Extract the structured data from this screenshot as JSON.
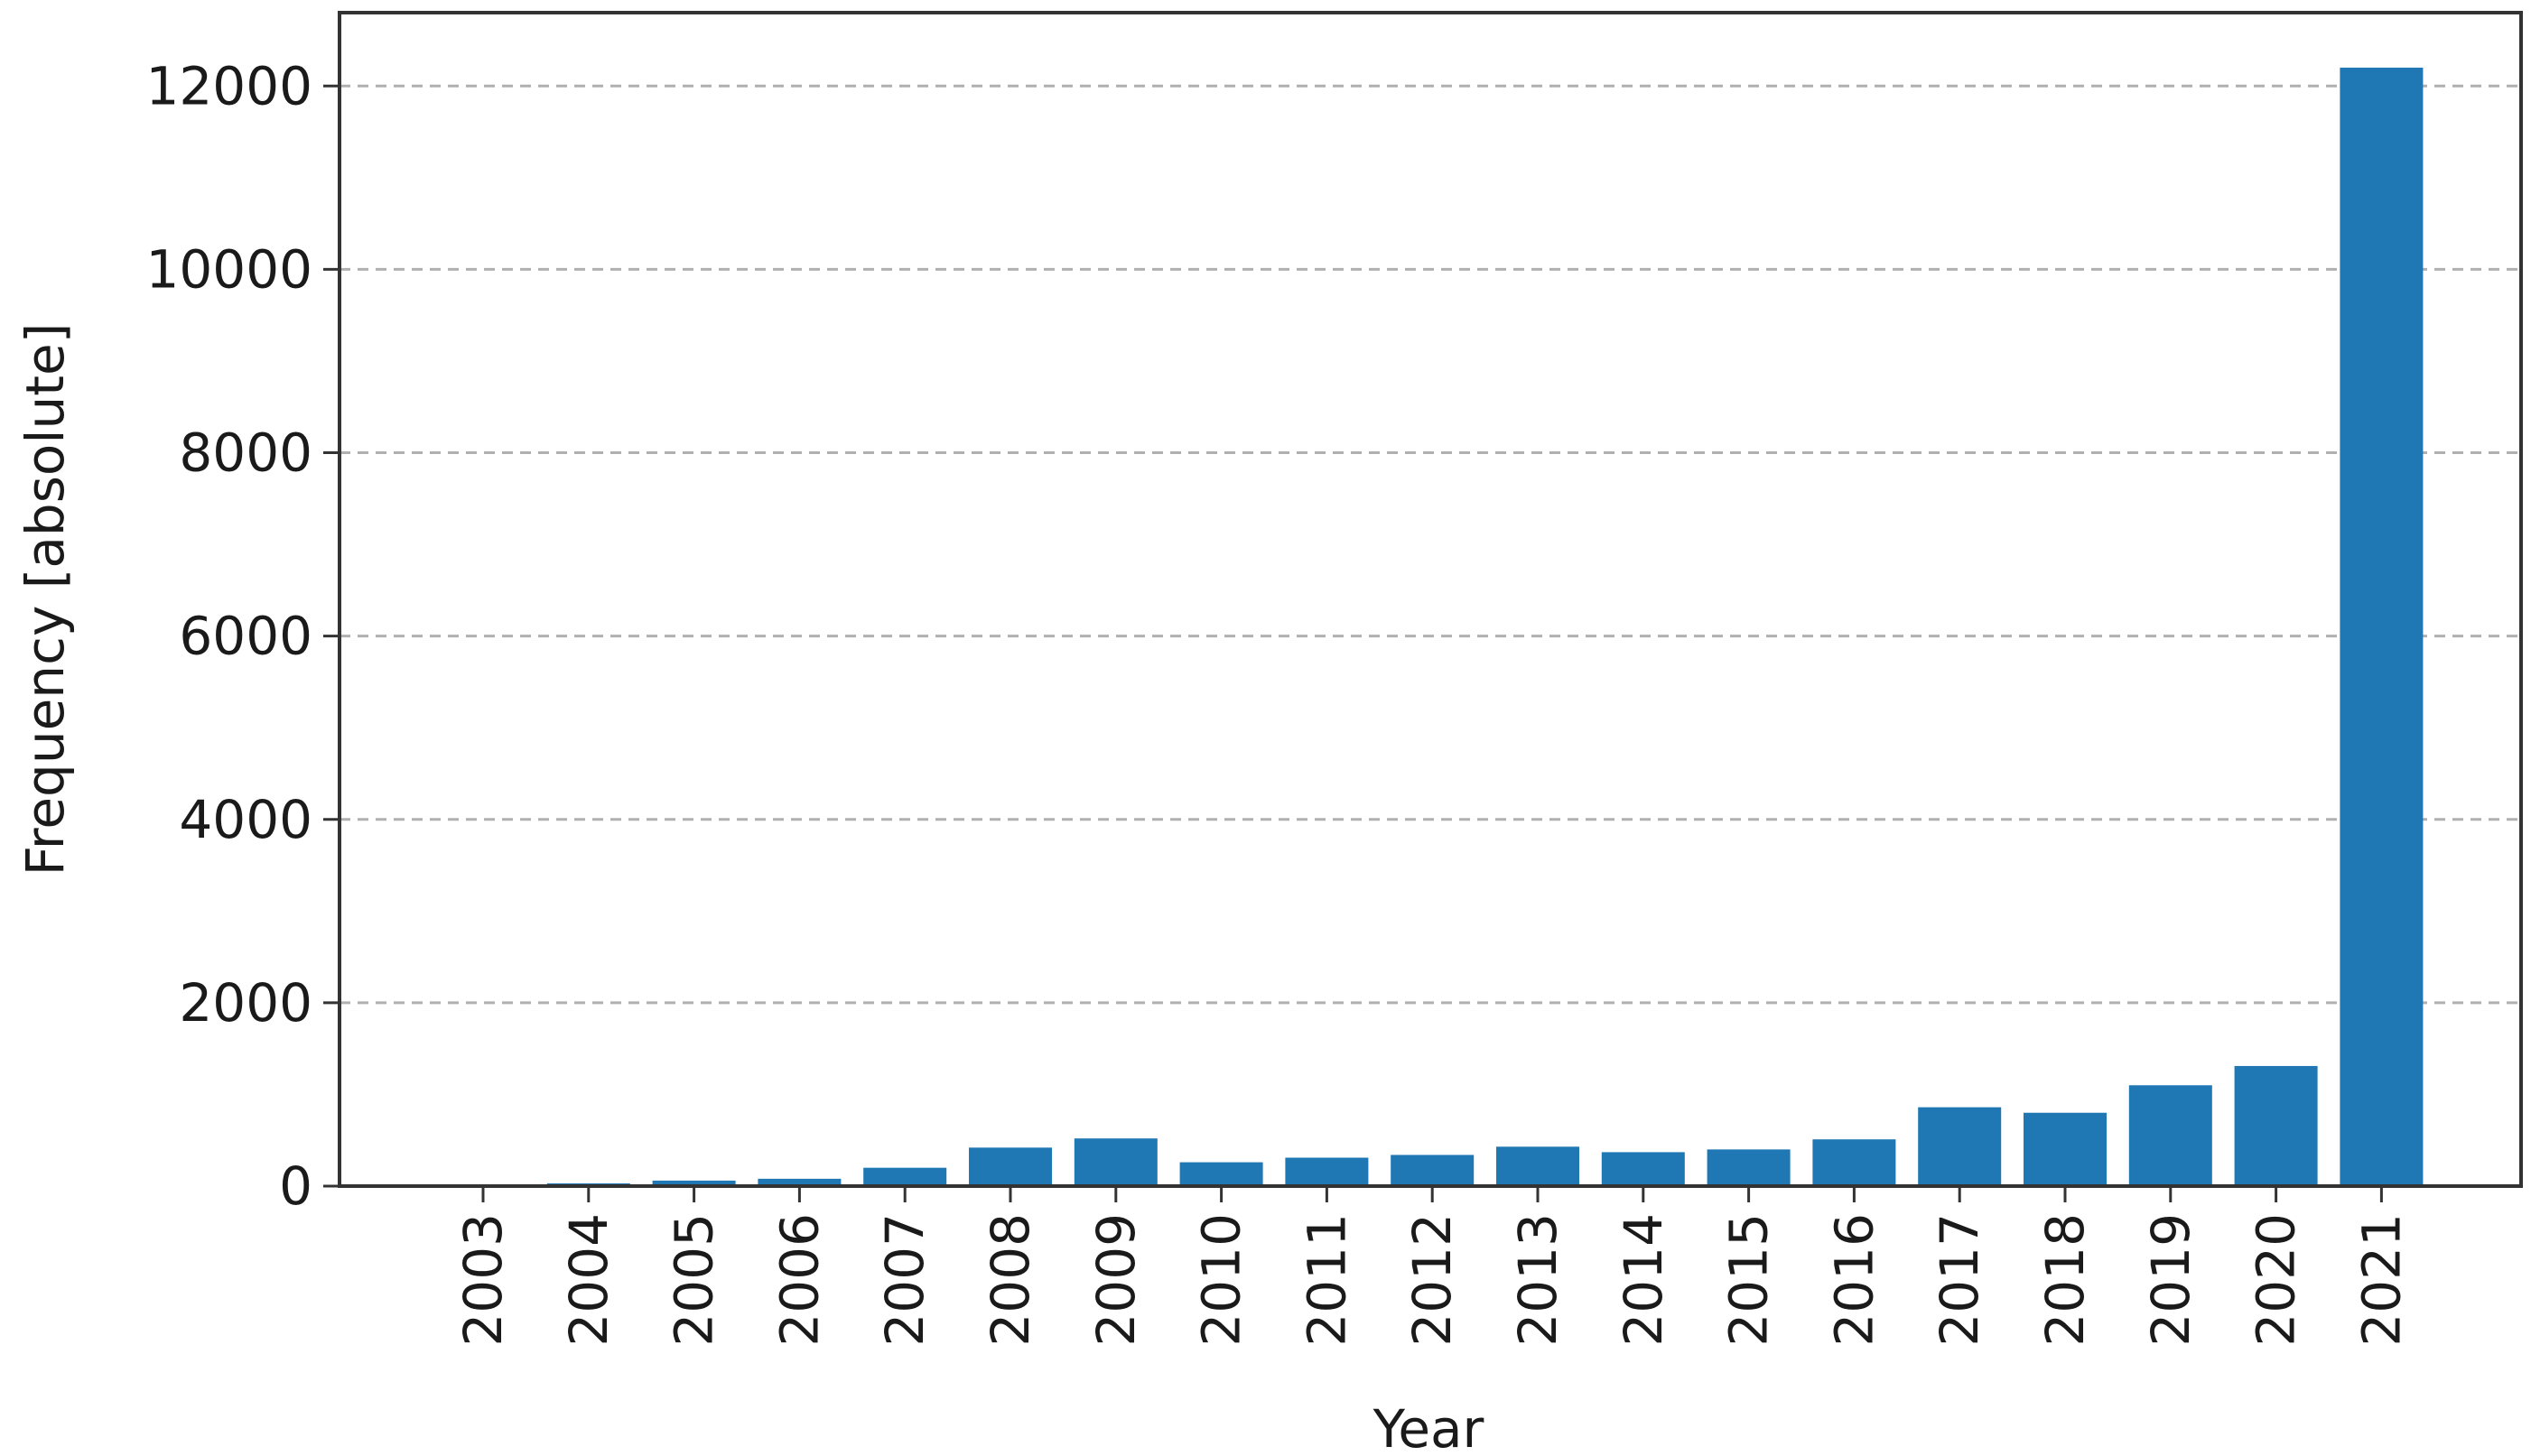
{
  "chart_data": {
    "type": "bar",
    "title": "",
    "xlabel": "Year",
    "ylabel": "Frequency [absolute]",
    "categories": [
      "2003",
      "2004",
      "2005",
      "2006",
      "2007",
      "2008",
      "2009",
      "2010",
      "2011",
      "2012",
      "2013",
      "2014",
      "2015",
      "2016",
      "2017",
      "2018",
      "2019",
      "2020",
      "2021"
    ],
    "values": [
      10,
      30,
      60,
      80,
      200,
      420,
      520,
      260,
      310,
      340,
      430,
      370,
      400,
      510,
      860,
      800,
      1100,
      1310,
      12200
    ],
    "ylim": [
      0,
      12800
    ],
    "yticks": [
      "0",
      "2000",
      "4000",
      "6000",
      "8000",
      "10000",
      "12000"
    ],
    "grid": "horizontal-dashed",
    "bar_color": "#1f77b4",
    "axis_color": "#333333",
    "grid_color": "#b0b0b0",
    "x_tick_rotation": "vertical"
  }
}
